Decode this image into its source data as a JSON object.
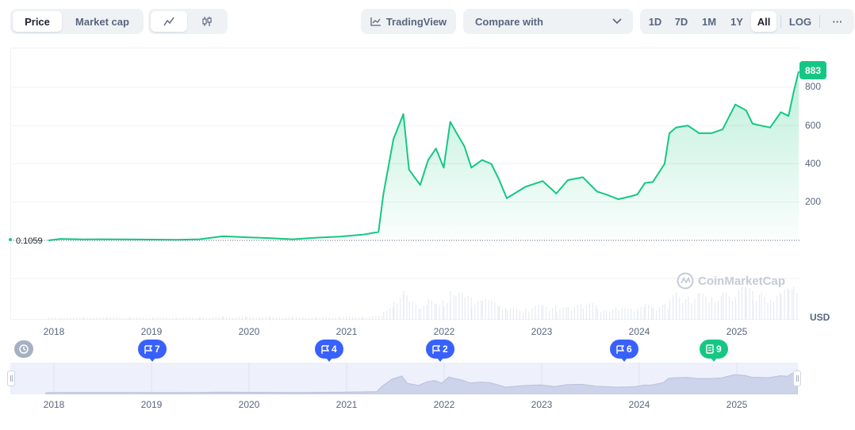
{
  "toolbar": {
    "view_tabs": [
      {
        "label": "Price",
        "active": true
      },
      {
        "label": "Market cap",
        "active": false
      }
    ],
    "chart_style_icons": [
      "line-chart-icon",
      "candlestick-icon"
    ],
    "tradingview_label": "TradingView",
    "compare_label": "Compare with",
    "ranges": [
      "1D",
      "7D",
      "1M",
      "1Y",
      "All"
    ],
    "active_range": "All",
    "log_label": "LOG",
    "more_label": "···"
  },
  "price_badge": "883",
  "start_price_label": "0.1059",
  "currency_label": "USD",
  "watermark_text": "CoinMarketCap",
  "y_ticks": [
    "800",
    "600",
    "400",
    "200"
  ],
  "x_ticks": [
    "2018",
    "2019",
    "2020",
    "2021",
    "2022",
    "2023",
    "2024",
    "2025"
  ],
  "navigator_ticks": [
    "2018",
    "2019",
    "2020",
    "2021",
    "2022",
    "2023",
    "2024",
    "2025"
  ],
  "events": [
    {
      "type": "flag",
      "count": "7",
      "color": "#3861fb"
    },
    {
      "type": "flag",
      "count": "4",
      "color": "#3861fb"
    },
    {
      "type": "flag",
      "count": "2",
      "color": "#3861fb"
    },
    {
      "type": "flag",
      "count": "6",
      "color": "#3861fb"
    },
    {
      "type": "document",
      "count": "9",
      "color": "#16c784"
    }
  ],
  "colors": {
    "line": "#16c784",
    "accent_blue": "#3861fb",
    "grid": "#eff2f5"
  },
  "chart_data": {
    "type": "area",
    "series": [
      {
        "points": [
          [
            "2017-07-15",
            0.1059
          ],
          [
            "2017-09-01",
            8
          ],
          [
            "2017-12-01",
            5
          ],
          [
            "2018-03-01",
            6
          ],
          [
            "2018-06-01",
            5
          ],
          [
            "2018-09-01",
            4
          ],
          [
            "2018-12-01",
            3
          ],
          [
            "2019-03-01",
            6
          ],
          [
            "2019-06-01",
            22
          ],
          [
            "2019-09-01",
            16
          ],
          [
            "2019-12-01",
            12
          ],
          [
            "2020-03-01",
            6
          ],
          [
            "2020-06-01",
            14
          ],
          [
            "2020-09-01",
            20
          ],
          [
            "2020-12-01",
            30
          ],
          [
            "2021-02-01",
            44
          ],
          [
            "2021-02-20",
            240
          ],
          [
            "2021-04-01",
            530
          ],
          [
            "2021-05-10",
            660
          ],
          [
            "2021-06-01",
            370
          ],
          [
            "2021-07-15",
            290
          ],
          [
            "2021-08-15",
            420
          ],
          [
            "2021-09-15",
            480
          ],
          [
            "2021-10-15",
            380
          ],
          [
            "2021-11-10",
            620
          ],
          [
            "2021-12-01",
            570
          ],
          [
            "2022-01-05",
            490
          ],
          [
            "2022-02-01",
            380
          ],
          [
            "2022-03-15",
            420
          ],
          [
            "2022-04-20",
            400
          ],
          [
            "2022-05-20",
            320
          ],
          [
            "2022-06-20",
            220
          ],
          [
            "2022-09-01",
            280
          ],
          [
            "2022-11-08",
            310
          ],
          [
            "2023-01-01",
            245
          ],
          [
            "2023-02-15",
            315
          ],
          [
            "2023-04-15",
            330
          ],
          [
            "2023-06-10",
            255
          ],
          [
            "2023-07-15",
            240
          ],
          [
            "2023-09-01",
            215
          ],
          [
            "2023-10-20",
            230
          ],
          [
            "2023-11-15",
            240
          ],
          [
            "2023-12-15",
            300
          ],
          [
            "2024-01-15",
            305
          ],
          [
            "2024-03-01",
            400
          ],
          [
            "2024-03-20",
            560
          ],
          [
            "2024-04-15",
            590
          ],
          [
            "2024-06-01",
            600
          ],
          [
            "2024-07-15",
            560
          ],
          [
            "2024-09-01",
            560
          ],
          [
            "2024-10-15",
            580
          ],
          [
            "2024-12-04",
            710
          ],
          [
            "2025-01-15",
            680
          ],
          [
            "2025-02-10",
            610
          ],
          [
            "2025-03-15",
            600
          ],
          [
            "2025-04-20",
            590
          ],
          [
            "2025-06-01",
            670
          ],
          [
            "2025-07-01",
            650
          ],
          [
            "2025-07-20",
            770
          ],
          [
            "2025-08-10",
            883
          ]
        ]
      }
    ],
    "y_range": [
      0,
      883
    ],
    "x_range": [
      "2017-07-15",
      "2025-08-10"
    ],
    "legend": "none"
  }
}
